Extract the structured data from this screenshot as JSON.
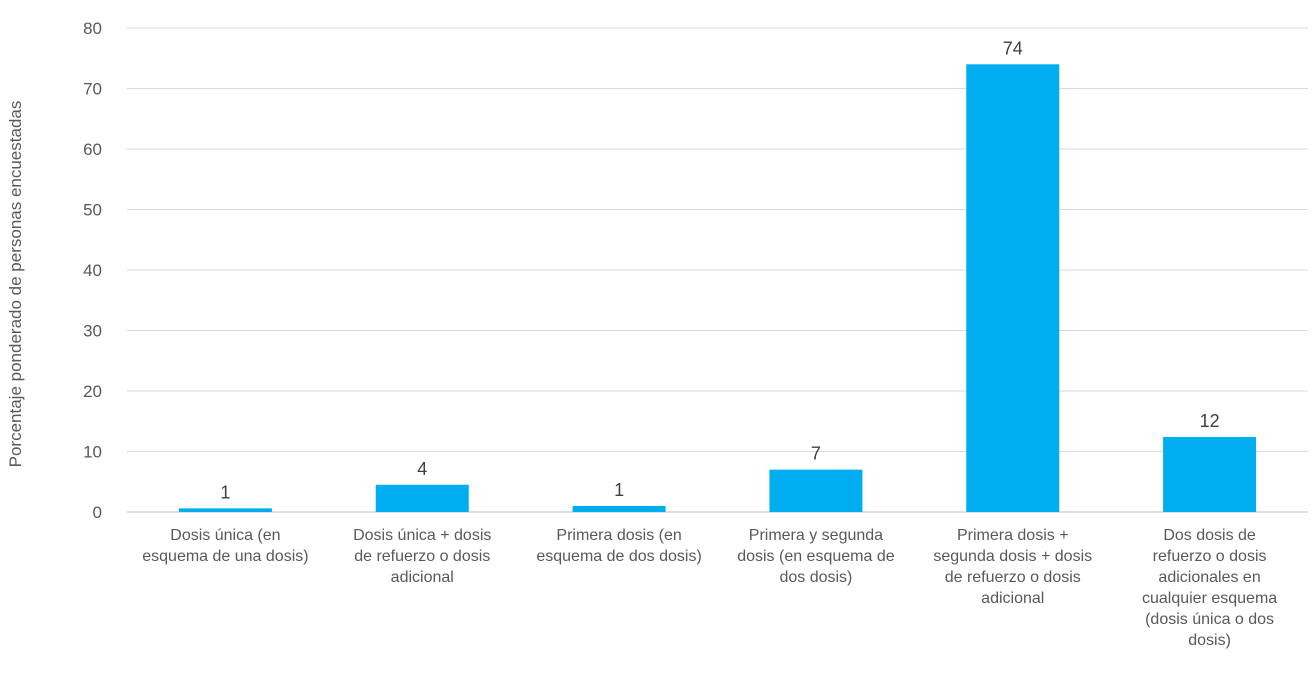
{
  "chart_data": {
    "type": "bar",
    "title": "",
    "xlabel": "",
    "ylabel": "Porcentaje ponderado de personas encuestadas",
    "ylim": [
      0,
      80
    ],
    "yticks": [
      0,
      10,
      20,
      30,
      40,
      50,
      60,
      70,
      80
    ],
    "grid": true,
    "legend": "none",
    "bar_color": "#00AEEF",
    "categories": [
      [
        "Dosis única (en",
        "esquema de una dosis)"
      ],
      [
        "Dosis única + dosis",
        "de refuerzo o dosis",
        "adicional"
      ],
      [
        "Primera dosis (en",
        "esquema de dos dosis)"
      ],
      [
        "Primera y segunda",
        "dosis (en esquema de",
        "dos dosis)"
      ],
      [
        "Primera dosis +",
        "segunda dosis + dosis",
        "de refuerzo o dosis",
        "adicional"
      ],
      [
        "Dos dosis de",
        "refuerzo o dosis",
        "adicionales en",
        "cualquier esquema",
        "(dosis única o dos",
        "dosis)"
      ]
    ],
    "values": [
      0.6,
      4.5,
      1.0,
      7.0,
      74.0,
      12.4
    ],
    "data_labels": [
      "1",
      "4",
      "1",
      "7",
      "74",
      "12"
    ]
  }
}
